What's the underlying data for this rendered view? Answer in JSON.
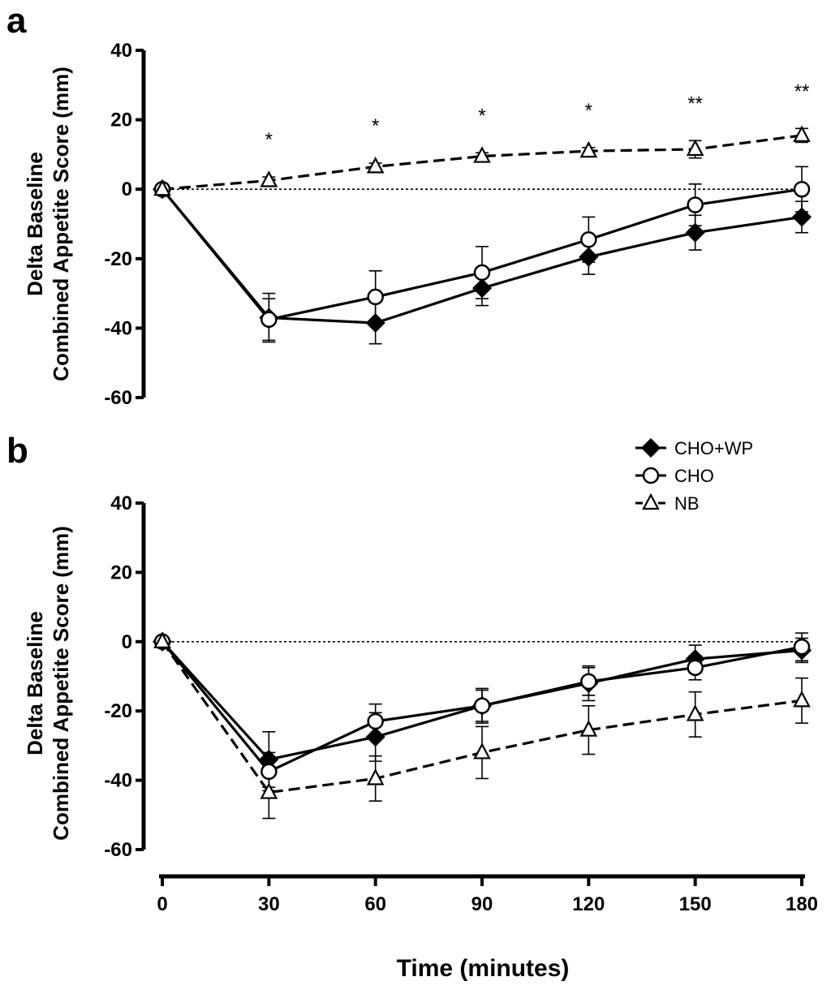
{
  "x_label": "Time (minutes)",
  "legend": [
    {
      "label": "CHO+WP",
      "marker": "diamond",
      "dash": "solid"
    },
    {
      "label": "CHO",
      "marker": "circle",
      "dash": "solid"
    },
    {
      "label": "NB",
      "marker": "triangle",
      "dash": "dashed"
    }
  ],
  "chart_data": [
    {
      "panel": "a",
      "type": "line",
      "ylabel": [
        "Delta Baseline",
        "Combined Appetite Score (mm)"
      ],
      "xlabel": "",
      "x": [
        0,
        30,
        60,
        90,
        120,
        150,
        180
      ],
      "ylim": [
        -60,
        40
      ],
      "yticks": [
        40,
        20,
        0,
        -20,
        -40,
        -60
      ],
      "reference_line_y": 0,
      "significance": [
        "",
        "*",
        "*",
        "*",
        "*",
        "**",
        "**"
      ],
      "series": [
        {
          "name": "CHO+WP",
          "values": [
            0,
            -37,
            -38.5,
            -28.5,
            -19.5,
            -12.5,
            -8
          ],
          "errors": [
            0,
            7,
            6,
            5,
            5,
            5,
            4.5
          ]
        },
        {
          "name": "CHO",
          "values": [
            0,
            -37.5,
            -31,
            -24,
            -14.5,
            -4.5,
            0
          ],
          "errors": [
            0,
            6,
            7.5,
            7.5,
            6.5,
            6,
            6.5
          ]
        },
        {
          "name": "NB",
          "values": [
            0,
            2.5,
            6.5,
            9.5,
            11,
            11.5,
            15.5
          ],
          "errors": [
            0,
            1,
            1,
            1,
            1,
            2.5,
            2
          ]
        }
      ]
    },
    {
      "panel": "b",
      "type": "line",
      "ylabel": [
        "Delta Baseline",
        "Combined Appetite Score (mm)"
      ],
      "xlabel": "Time (minutes)",
      "x": [
        0,
        30,
        60,
        90,
        120,
        150,
        180
      ],
      "xticks": [
        "0",
        "30",
        "60",
        "90",
        "120",
        "150",
        "180"
      ],
      "ylim": [
        -60,
        40
      ],
      "yticks": [
        40,
        20,
        0,
        -20,
        -40,
        -60
      ],
      "reference_line_y": 0,
      "series": [
        {
          "name": "CHO+WP",
          "values": [
            0,
            -34,
            -27.5,
            -18.5,
            -12,
            -5,
            -2.5
          ],
          "errors": [
            0,
            8,
            7,
            5,
            5,
            4,
            3.5
          ]
        },
        {
          "name": "CHO",
          "values": [
            0,
            -37.5,
            -23,
            -18.5,
            -11.5,
            -7.5,
            -1.5
          ],
          "errors": [
            0,
            5.5,
            5,
            4.5,
            4,
            3.5,
            4
          ]
        },
        {
          "name": "NB",
          "values": [
            0,
            -43.5,
            -39.5,
            -32,
            -25.5,
            -21,
            -17
          ],
          "errors": [
            0,
            7.5,
            6.5,
            7.5,
            7,
            6.5,
            6.5
          ]
        }
      ]
    }
  ]
}
